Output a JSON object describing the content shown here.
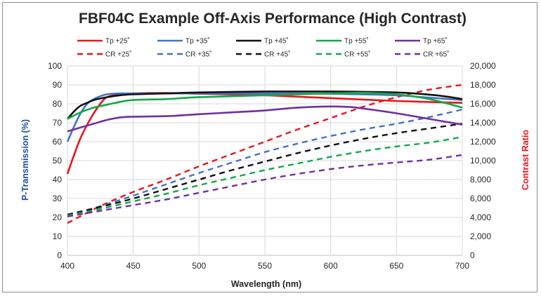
{
  "chart_data": {
    "type": "line",
    "title": "FBF04C Example Off-Axis Performance (High Contrast)",
    "xlabel": "Wavelength (nm)",
    "ylabel": "P-Transmission (%)",
    "y2label": "Contrast Ratio",
    "xlim": [
      400,
      700
    ],
    "ylim": [
      0,
      100
    ],
    "y2lim": [
      0,
      20000
    ],
    "x_ticks": [
      "400",
      "450",
      "500",
      "550",
      "600",
      "650",
      "700"
    ],
    "y_ticks": [
      "0",
      "10",
      "20",
      "30",
      "40",
      "50",
      "60",
      "70",
      "80",
      "90",
      "100"
    ],
    "y2_ticks": [
      "0",
      "2,000",
      "4,000",
      "6,000",
      "8,000",
      "10,000",
      "12,000",
      "14,000",
      "16,000",
      "18,000",
      "20,000"
    ],
    "grid": true,
    "legend_position": "top",
    "colors": {
      "c25": "#e8161b",
      "c35": "#4472c4",
      "c45": "#111111",
      "c55": "#14a84b",
      "c65": "#7030a0",
      "ylabel": "#1f4e9b",
      "y2label": "#e8161b",
      "grid": "#d9d9d9"
    },
    "series": [
      {
        "name": "Tp +25˚",
        "axis": "left",
        "style": "solid",
        "color": "c25",
        "x": [
          400,
          405,
          410,
          415,
          420,
          425,
          430,
          440,
          450,
          475,
          500,
          550,
          600,
          650,
          700
        ],
        "y": [
          43,
          53,
          62,
          69,
          75,
          80,
          83.5,
          85,
          85.5,
          85.7,
          85.3,
          84.5,
          83,
          81.5,
          80.5
        ]
      },
      {
        "name": "Tp +35˚",
        "axis": "left",
        "style": "solid",
        "color": "c35",
        "x": [
          400,
          405,
          410,
          415,
          420,
          425,
          430,
          440,
          450,
          475,
          500,
          550,
          600,
          650,
          670,
          700
        ],
        "y": [
          60,
          68,
          75,
          80,
          82.5,
          84,
          85,
          85.5,
          85.5,
          85.5,
          85.5,
          85.5,
          85.3,
          84.5,
          83.5,
          82
        ]
      },
      {
        "name": "Tp +45˚",
        "axis": "left",
        "style": "solid",
        "color": "c45",
        "x": [
          400,
          405,
          410,
          415,
          420,
          430,
          440,
          450,
          475,
          500,
          550,
          600,
          650,
          680,
          700
        ],
        "y": [
          72,
          76,
          79,
          80.5,
          82,
          83.5,
          84.5,
          85,
          85.5,
          86,
          86.5,
          86.5,
          86,
          84.5,
          82.5
        ]
      },
      {
        "name": "Tp +55˚",
        "axis": "left",
        "style": "solid",
        "color": "c55",
        "x": [
          400,
          410,
          420,
          430,
          440,
          450,
          475,
          500,
          550,
          600,
          625,
          650,
          675,
          700
        ],
        "y": [
          72,
          75.5,
          78,
          79.5,
          81,
          82,
          82.5,
          83.5,
          84.5,
          85.5,
          85.8,
          85,
          82.5,
          78
        ]
      },
      {
        "name": "Tp +65˚",
        "axis": "left",
        "style": "solid",
        "color": "c65",
        "x": [
          400,
          410,
          420,
          430,
          440,
          450,
          475,
          500,
          525,
          550,
          575,
          600,
          615,
          625,
          650,
          675,
          700
        ],
        "y": [
          65.5,
          67.5,
          69.5,
          71.5,
          72.8,
          73.2,
          73.5,
          74.5,
          75.5,
          76.5,
          78,
          78.6,
          78.3,
          77.5,
          75,
          72,
          69
        ]
      },
      {
        "name": "CR +25˚",
        "axis": "right",
        "style": "dashed",
        "color": "c25",
        "x": [
          400,
          425,
          450,
          475,
          500,
          525,
          550,
          575,
          600,
          625,
          650,
          675,
          700
        ],
        "y": [
          3400,
          5200,
          6700,
          8000,
          9400,
          10700,
          12000,
          13300,
          14500,
          15700,
          16700,
          17500,
          18000
        ]
      },
      {
        "name": "CR +35˚",
        "axis": "right",
        "style": "dashed",
        "color": "c35",
        "x": [
          400,
          425,
          450,
          475,
          500,
          525,
          550,
          575,
          600,
          625,
          650,
          675,
          700
        ],
        "y": [
          4200,
          5200,
          6300,
          7500,
          8700,
          9800,
          10900,
          11800,
          12600,
          13300,
          13900,
          14600,
          15400
        ]
      },
      {
        "name": "CR +45˚",
        "axis": "right",
        "style": "dashed",
        "color": "c45",
        "x": [
          400,
          425,
          450,
          475,
          500,
          525,
          550,
          575,
          600,
          625,
          650,
          675,
          700
        ],
        "y": [
          4300,
          5100,
          6000,
          7000,
          8000,
          9000,
          9900,
          10800,
          11600,
          12300,
          12900,
          13400,
          13900
        ]
      },
      {
        "name": "CR +55˚",
        "axis": "right",
        "style": "dashed",
        "color": "c55",
        "x": [
          400,
          425,
          450,
          475,
          500,
          525,
          550,
          575,
          600,
          625,
          650,
          675,
          700
        ],
        "y": [
          4200,
          4900,
          5700,
          6500,
          7400,
          8200,
          9000,
          9700,
          10400,
          11000,
          11500,
          11900,
          12500
        ]
      },
      {
        "name": "CR +65˚",
        "axis": "right",
        "style": "dashed",
        "color": "c65",
        "x": [
          400,
          425,
          450,
          475,
          500,
          525,
          550,
          575,
          600,
          625,
          650,
          675,
          700
        ],
        "y": [
          4100,
          4700,
          5300,
          5900,
          6600,
          7300,
          8000,
          8600,
          9100,
          9500,
          9800,
          10100,
          10600
        ]
      }
    ]
  }
}
